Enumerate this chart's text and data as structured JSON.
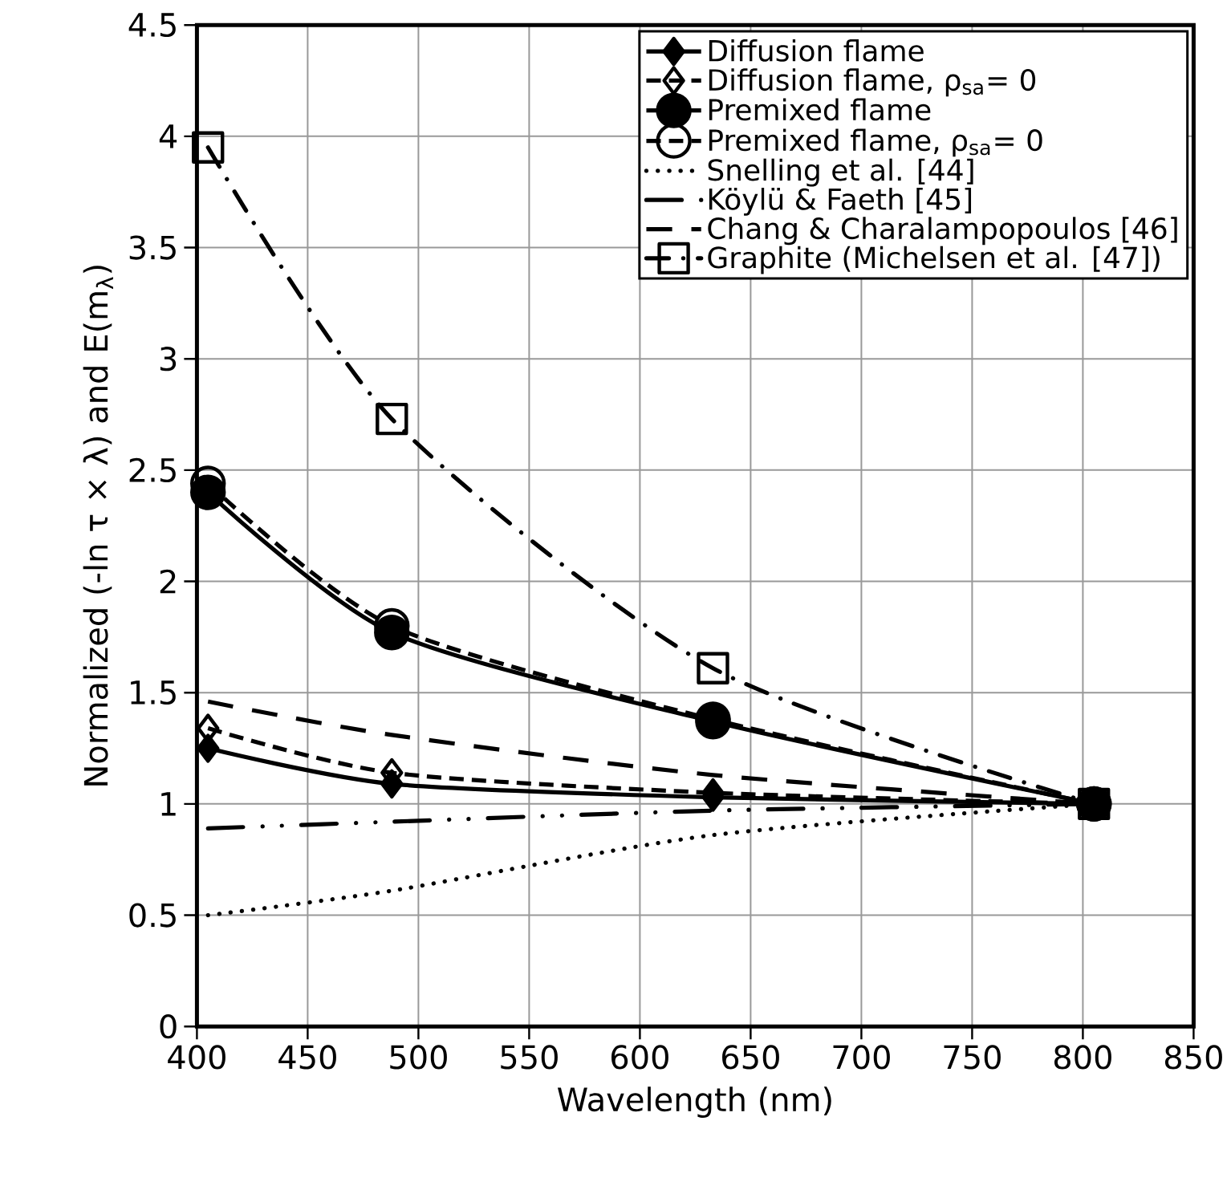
{
  "chart_data": {
    "type": "line",
    "xlabel": "Wavelength (nm)",
    "ylabel": "Normalized  (-ln τ × λ)  and  E(m$_{λ}$)",
    "xlim": [
      400,
      850
    ],
    "xticks": [
      400,
      450,
      500,
      550,
      600,
      650,
      700,
      750,
      800,
      850
    ],
    "ylim": [
      0,
      4.5
    ],
    "yticks": [
      0,
      0.5,
      1,
      1.5,
      2,
      2.5,
      3,
      3.5,
      4,
      4.5
    ],
    "grid": true,
    "legend": "top right",
    "series": [
      {
        "name": "Diffusion flame",
        "color": "#000000",
        "x": [
          405,
          488,
          633,
          805
        ],
        "values": [
          1.25,
          1.09,
          1.03,
          1.0
        ],
        "marker": "diamond",
        "line_style": "solid"
      },
      {
        "name": "Diffusion flame, ρ$_{sa}$= 0",
        "color": "#000000",
        "x": [
          405,
          488,
          633,
          805
        ],
        "values": [
          1.34,
          1.14,
          1.05,
          1.0
        ],
        "marker": "diamond-open",
        "line_style": "dashed"
      },
      {
        "name": "Premixed flame",
        "color": "#000000",
        "x": [
          405,
          488,
          633,
          805
        ],
        "values": [
          2.4,
          1.77,
          1.37,
          1.0
        ],
        "marker": "circle",
        "line_style": "solid"
      },
      {
        "name": "Premixed flame, ρ$_{sa}$= 0",
        "color": "#000000",
        "x": [
          405,
          488,
          633,
          805
        ],
        "values": [
          2.44,
          1.8,
          1.38,
          1.0
        ],
        "marker": "circle-open",
        "line_style": "dashed"
      },
      {
        "name": "Snelling et al. [44]",
        "color": "#000000",
        "x": [
          405,
          488,
          633,
          805
        ],
        "values": [
          0.5,
          0.61,
          0.86,
          1.0
        ],
        "marker": "none",
        "line_style": "dotted"
      },
      {
        "name": "Köylü & Faeth [45]",
        "color": "#000000",
        "x": [
          405,
          488,
          633,
          805
        ],
        "values": [
          0.89,
          0.92,
          0.97,
          1.0
        ],
        "marker": "none",
        "line_style": "dashdotdot"
      },
      {
        "name": "Chang & Charalampopoulos [46]",
        "color": "#000000",
        "x": [
          405,
          488,
          633,
          805
        ],
        "values": [
          1.46,
          1.31,
          1.13,
          1.0
        ],
        "marker": "none",
        "line_style": "longdashed"
      },
      {
        "name": "Graphite (Michelsen et al. [47])",
        "color": "#000000",
        "x": [
          405,
          488,
          633,
          805
        ],
        "values": [
          3.95,
          2.73,
          1.61,
          1.0
        ],
        "marker": "square-open",
        "line_style": "dashdot"
      }
    ]
  }
}
